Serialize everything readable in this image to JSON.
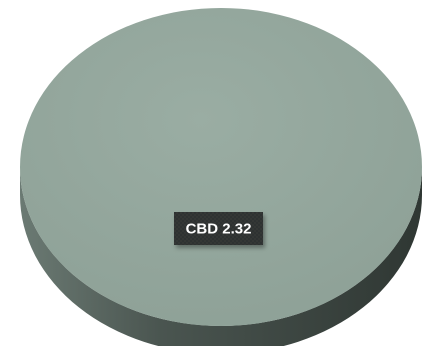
{
  "chart_data": {
    "type": "pie",
    "title": "",
    "legend": "none",
    "slices": [
      {
        "label": "CBD",
        "value": 2.32,
        "data_label": "CBD  2.32",
        "color": "#94a89e"
      }
    ],
    "style": {
      "three_d": true,
      "side_color_dark": "#3b4541",
      "side_color_light": "#6b7a73",
      "label_box_color": "#2f3331"
    }
  }
}
